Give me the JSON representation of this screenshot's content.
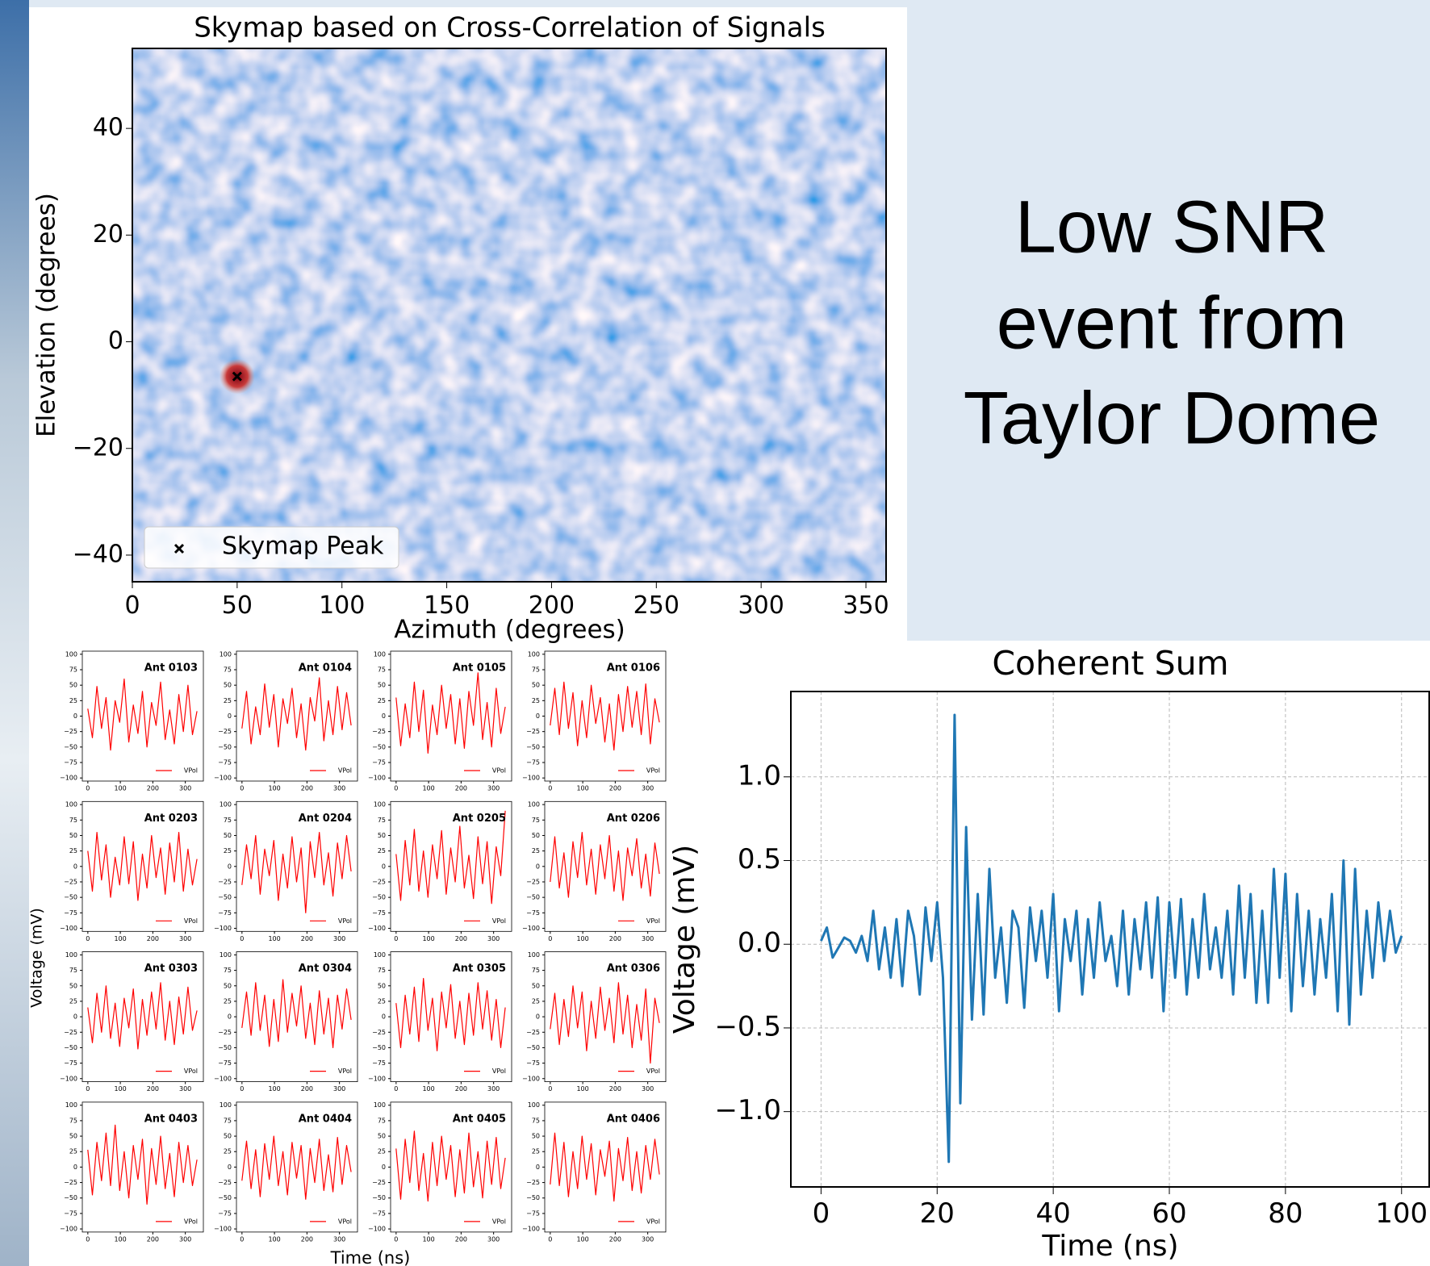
{
  "slide_title": [
    "Low SNR",
    "event from",
    "Taylor Dome"
  ],
  "chart_data": [
    {
      "type": "scatter",
      "title": "Skymap based on Cross-Correlation of Signals",
      "xlabel": "Azimuth (degrees)",
      "ylabel": "Elevation (degrees)",
      "xlim": [
        0,
        360
      ],
      "ylim": [
        -45,
        55
      ],
      "xticks": [
        0,
        50,
        100,
        150,
        200,
        250,
        300,
        350
      ],
      "yticks": [
        {
          "value": -40,
          "label": "−40"
        },
        {
          "value": -20,
          "label": "−20"
        },
        0,
        20,
        40
      ],
      "legend": "lower left",
      "series": [
        {
          "name": "Skymap Peak",
          "color": "#000000",
          "x": [
            50
          ],
          "values": [
            -6.5
          ]
        }
      ]
    },
    {
      "type": "line",
      "xlabel": "Time (ns)",
      "ylabel": "Voltage (mV)",
      "legend_label": "VPol",
      "color": "#ff0000",
      "xlim": [
        -17,
        358
      ],
      "ylim": [
        -105,
        105
      ],
      "xticks": [
        0,
        100,
        200,
        300
      ],
      "yticks": [
        {
          "value": -100,
          "label": "−100"
        },
        {
          "value": -75,
          "label": "−75"
        },
        {
          "value": -50,
          "label": "−50"
        },
        {
          "value": -25,
          "label": "−25"
        },
        0,
        25,
        50,
        75,
        100
      ],
      "x": [
        0,
        14,
        28,
        42,
        56,
        70,
        84,
        98,
        112,
        126,
        140,
        154,
        168,
        182,
        196,
        210,
        224,
        238,
        252,
        266,
        280,
        294,
        308,
        322,
        336
      ],
      "series": [
        {
          "name": "Ant 0103",
          "values": [
            12,
            -35,
            48,
            -20,
            30,
            -55,
            25,
            -10,
            60,
            -42,
            18,
            -28,
            40,
            -50,
            22,
            -15,
            55,
            -38,
            10,
            -45,
            35,
            -25,
            50,
            -30,
            8
          ]
        },
        {
          "name": "Ant 0104",
          "values": [
            -20,
            40,
            -45,
            15,
            -30,
            52,
            -18,
            35,
            -50,
            28,
            -12,
            45,
            -35,
            20,
            -55,
            30,
            -8,
            62,
            -40,
            25,
            -30,
            48,
            -22,
            38,
            -15
          ]
        },
        {
          "name": "Ant 0105",
          "values": [
            30,
            -48,
            20,
            -35,
            55,
            -25,
            42,
            -60,
            18,
            -30,
            50,
            -20,
            35,
            -45,
            28,
            -52,
            40,
            -15,
            70,
            -38,
            22,
            -50,
            45,
            -28,
            15
          ]
        },
        {
          "name": "Ant 0106",
          "values": [
            -15,
            45,
            -30,
            55,
            -20,
            38,
            -48,
            25,
            -35,
            50,
            -12,
            30,
            -42,
            20,
            -55,
            35,
            -25,
            48,
            -18,
            40,
            -30,
            52,
            -45,
            28,
            -10
          ]
        },
        {
          "name": "Ant 0203",
          "values": [
            25,
            -40,
            55,
            -22,
            35,
            -50,
            15,
            -30,
            48,
            -28,
            40,
            -55,
            20,
            -35,
            50,
            -18,
            30,
            -45,
            38,
            -25,
            55,
            -40,
            28,
            -30,
            12
          ]
        },
        {
          "name": "Ant 0204",
          "values": [
            -30,
            35,
            -20,
            50,
            -45,
            28,
            -15,
            42,
            -55,
            20,
            -35,
            48,
            -25,
            30,
            -75,
            40,
            -18,
            55,
            -30,
            22,
            -48,
            38,
            -20,
            50,
            -8
          ]
        },
        {
          "name": "Ant 0205",
          "values": [
            20,
            -55,
            42,
            -30,
            60,
            -40,
            25,
            -50,
            35,
            -20,
            58,
            -45,
            30,
            -25,
            65,
            -35,
            18,
            -52,
            48,
            -28,
            40,
            -60,
            32,
            -15,
            90
          ]
        },
        {
          "name": "Ant 0206",
          "values": [
            -25,
            48,
            -35,
            22,
            -50,
            40,
            -18,
            55,
            -30,
            28,
            -45,
            35,
            -20,
            50,
            -40,
            25,
            -55,
            30,
            -15,
            45,
            -35,
            20,
            -48,
            38,
            -12
          ]
        },
        {
          "name": "Ant 0303",
          "values": [
            15,
            -42,
            38,
            -25,
            50,
            -35,
            22,
            -48,
            30,
            -18,
            45,
            -52,
            28,
            -30,
            40,
            -20,
            55,
            -38,
            25,
            -45,
            32,
            -28,
            48,
            -22,
            10
          ]
        },
        {
          "name": "Ant 0304",
          "values": [
            -18,
            40,
            -30,
            55,
            -22,
            35,
            -48,
            28,
            -40,
            60,
            -25,
            38,
            -15,
            50,
            -35,
            22,
            -45,
            42,
            -28,
            30,
            -50,
            35,
            -20,
            45,
            -5
          ]
        },
        {
          "name": "Ant 0305",
          "values": [
            22,
            -50,
            35,
            -28,
            48,
            -40,
            62,
            -22,
            30,
            -55,
            40,
            -18,
            52,
            -35,
            25,
            -45,
            38,
            -30,
            55,
            -20,
            42,
            -38,
            28,
            -50,
            15
          ]
        },
        {
          "name": "Ant 0306",
          "values": [
            -20,
            38,
            -45,
            28,
            -32,
            50,
            -18,
            40,
            -55,
            25,
            -35,
            48,
            -22,
            30,
            -42,
            55,
            -28,
            35,
            -50,
            20,
            -38,
            45,
            -75,
            30,
            -10
          ]
        },
        {
          "name": "Ant 0403",
          "values": [
            28,
            -45,
            40,
            -22,
            55,
            -30,
            68,
            -38,
            25,
            -50,
            35,
            -20,
            45,
            -60,
            30,
            -28,
            50,
            -35,
            22,
            -48,
            40,
            -25,
            35,
            -30,
            12
          ]
        },
        {
          "name": "Ant 0404",
          "values": [
            -22,
            42,
            -35,
            28,
            -48,
            38,
            -20,
            50,
            -30,
            25,
            -45,
            40,
            -18,
            35,
            -52,
            30,
            -25,
            45,
            -38,
            20,
            -40,
            48,
            -28,
            35,
            -8
          ]
        },
        {
          "name": "Ant 0405",
          "values": [
            30,
            -52,
            45,
            -25,
            58,
            -38,
            22,
            -55,
            40,
            -30,
            50,
            -20,
            35,
            -48,
            28,
            -42,
            55,
            -32,
            25,
            -50,
            42,
            -28,
            48,
            -35,
            15
          ]
        },
        {
          "name": "Ant 0406",
          "values": [
            -28,
            55,
            -30,
            40,
            -48,
            25,
            -35,
            50,
            -20,
            38,
            -45,
            28,
            -15,
            42,
            -55,
            30,
            -22,
            48,
            -38,
            25,
            -42,
            35,
            -20,
            45,
            -12
          ]
        }
      ]
    },
    {
      "type": "line",
      "title": "Coherent Sum",
      "xlabel": "Time (ns)",
      "ylabel": "Voltage (mV)",
      "grid": true,
      "xlim": [
        -5.2,
        104.9
      ],
      "ylim": [
        -1.45,
        1.51
      ],
      "xticks": [
        0,
        20,
        40,
        60,
        80,
        100
      ],
      "yticks": [
        {
          "value": -1,
          "label": "−1.0"
        },
        {
          "value": -0.5,
          "label": "−0.5"
        },
        {
          "value": 0,
          "label": "0.0"
        },
        0.5,
        {
          "value": 1,
          "label": "1.0"
        }
      ],
      "x": [
        0,
        1,
        2,
        3,
        4,
        5,
        6,
        7,
        8,
        9,
        10,
        11,
        12,
        13,
        14,
        15,
        16,
        17,
        18,
        19,
        20,
        21,
        22,
        23,
        24,
        25,
        26,
        27,
        28,
        29,
        30,
        31,
        32,
        33,
        34,
        35,
        36,
        37,
        38,
        39,
        40,
        41,
        42,
        43,
        44,
        45,
        46,
        47,
        48,
        49,
        50,
        51,
        52,
        53,
        54,
        55,
        56,
        57,
        58,
        59,
        60,
        61,
        62,
        63,
        64,
        65,
        66,
        67,
        68,
        69,
        70,
        71,
        72,
        73,
        74,
        75,
        76,
        77,
        78,
        79,
        80,
        81,
        82,
        83,
        84,
        85,
        86,
        87,
        88,
        89,
        90,
        91,
        92,
        93,
        94,
        95,
        96,
        97,
        98,
        99,
        100
      ],
      "series": [
        {
          "color": "#1f77b4",
          "values": [
            0.02,
            0.1,
            -0.08,
            -0.02,
            0.04,
            0.02,
            -0.05,
            0.05,
            -0.1,
            0.2,
            -0.15,
            0.1,
            -0.2,
            0.15,
            -0.25,
            0.2,
            0.05,
            -0.3,
            0.22,
            -0.1,
            0.25,
            -0.2,
            -1.3,
            1.37,
            -0.95,
            0.7,
            -0.45,
            0.3,
            -0.42,
            0.45,
            -0.2,
            0.1,
            -0.35,
            0.2,
            0.1,
            -0.38,
            0.22,
            -0.1,
            0.2,
            -0.2,
            0.3,
            -0.4,
            0.15,
            -0.1,
            0.2,
            -0.3,
            0.15,
            -0.2,
            0.25,
            -0.1,
            0.05,
            -0.25,
            0.2,
            -0.3,
            0.15,
            -0.15,
            0.25,
            -0.2,
            0.28,
            -0.4,
            0.25,
            -0.2,
            0.27,
            -0.3,
            0.15,
            -0.2,
            0.3,
            -0.15,
            0.1,
            -0.2,
            0.2,
            -0.3,
            0.35,
            -0.2,
            0.3,
            -0.35,
            0.2,
            -0.35,
            0.45,
            -0.2,
            0.42,
            -0.4,
            0.3,
            -0.25,
            0.2,
            -0.3,
            0.15,
            -0.2,
            0.3,
            -0.4,
            0.5,
            -0.48,
            0.45,
            -0.3,
            0.2,
            -0.2,
            0.25,
            -0.1,
            0.2,
            -0.05,
            0.05
          ]
        }
      ]
    }
  ]
}
